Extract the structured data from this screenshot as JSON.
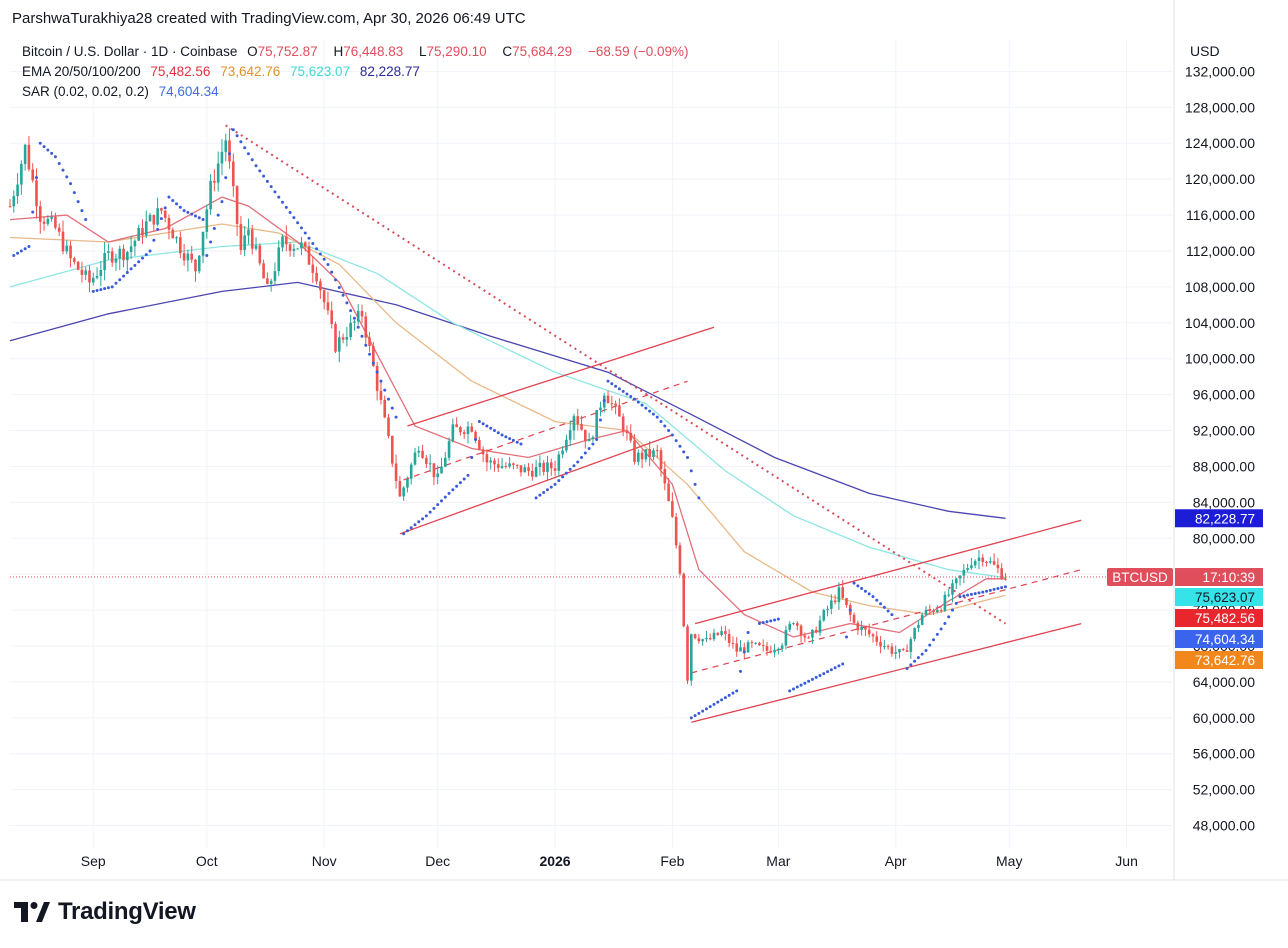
{
  "header": {
    "text": "ParshwaTurakhiya28 created with TradingView.com, Apr 30, 2026 06:49 UTC"
  },
  "legend": {
    "symbol": "Bitcoin / U.S. Dollar · 1D · Coinbase",
    "o_label": "O",
    "o": "75,752.87",
    "h_label": "H",
    "h": "76,448.83",
    "l_label": "L",
    "l": "75,290.10",
    "c_label": "C",
    "c": "75,684.29",
    "change": "−68.59 (−0.09%)",
    "ema_label": "EMA 20/50/100/200",
    "ema20": "75,482.56",
    "ema50": "73,642.76",
    "ema100": "75,623.07",
    "ema200": "82,228.77",
    "sar_label": "SAR (0.02, 0.02, 0.2)",
    "sar": "74,604.34"
  },
  "currency": "USD",
  "brand": "TradingView",
  "chart_data": {
    "type": "candlestick",
    "symbol": "BTCUSD",
    "y_ticks": [
      132000,
      128000,
      124000,
      120000,
      116000,
      112000,
      108000,
      104000,
      100000,
      96000,
      92000,
      88000,
      84000,
      80000,
      76000,
      72000,
      68000,
      64000,
      60000,
      56000,
      52000,
      48000
    ],
    "y_tick_labels": [
      "132,000.00",
      "128,000.00",
      "124,000.00",
      "120,000.00",
      "116,000.00",
      "112,000.00",
      "108,000.00",
      "104,000.00",
      "100,000.00",
      "96,000.00",
      "92,000.00",
      "88,000.00",
      "84,000.00",
      "80,000.00",
      "76,000.00",
      "72,000.00",
      "68,000.00",
      "64,000.00",
      "60,000.00",
      "56,000.00",
      "52,000.00",
      "48,000.00"
    ],
    "ylim": [
      45500,
      135500
    ],
    "x_ticks": [
      {
        "label": "Sep",
        "date": "2025-09-01"
      },
      {
        "label": "Oct",
        "date": "2025-10-01"
      },
      {
        "label": "Nov",
        "date": "2025-11-01"
      },
      {
        "label": "Dec",
        "date": "2025-12-01"
      },
      {
        "label": "2026",
        "date": "2026-01-01",
        "bold": true
      },
      {
        "label": "Feb",
        "date": "2026-02-01"
      },
      {
        "label": "Mar",
        "date": "2026-03-01"
      },
      {
        "label": "Apr",
        "date": "2026-04-01"
      },
      {
        "label": "May",
        "date": "2026-05-01"
      },
      {
        "label": "Jun",
        "date": "2026-06-01"
      }
    ],
    "xlim": [
      "2025-08-10",
      "2026-06-13"
    ],
    "price_path": [
      [
        "2025-08-10",
        117000
      ],
      [
        "2025-08-14",
        123500
      ],
      [
        "2025-08-18",
        116000
      ],
      [
        "2025-08-22",
        114500
      ],
      [
        "2025-08-26",
        111000
      ],
      [
        "2025-08-31",
        108500
      ],
      [
        "2025-09-05",
        111500
      ],
      [
        "2025-09-10",
        112000
      ],
      [
        "2025-09-15",
        115000
      ],
      [
        "2025-09-19",
        116500
      ],
      [
        "2025-09-24",
        112500
      ],
      [
        "2025-09-28",
        110000
      ],
      [
        "2025-10-02",
        119000
      ],
      [
        "2025-10-06",
        124500
      ],
      [
        "2025-10-10",
        112000
      ],
      [
        "2025-10-12",
        114500
      ],
      [
        "2025-10-17",
        107500
      ],
      [
        "2025-10-21",
        113000
      ],
      [
        "2025-10-26",
        112500
      ],
      [
        "2025-10-30",
        109500
      ],
      [
        "2025-11-04",
        101500
      ],
      [
        "2025-11-08",
        103500
      ],
      [
        "2025-11-11",
        105000
      ],
      [
        "2025-11-16",
        95000
      ],
      [
        "2025-11-21",
        84500
      ],
      [
        "2025-11-26",
        90500
      ],
      [
        "2025-12-01",
        86500
      ],
      [
        "2025-12-05",
        92000
      ],
      [
        "2025-12-10",
        92500
      ],
      [
        "2025-12-14",
        88500
      ],
      [
        "2025-12-19",
        88000
      ],
      [
        "2025-12-25",
        87500
      ],
      [
        "2026-01-01",
        88000
      ],
      [
        "2026-01-06",
        94000
      ],
      [
        "2026-01-10",
        90500
      ],
      [
        "2026-01-14",
        96500
      ],
      [
        "2026-01-19",
        92500
      ],
      [
        "2026-01-22",
        89000
      ],
      [
        "2026-01-28",
        89500
      ],
      [
        "2026-02-01",
        82000
      ],
      [
        "2026-02-03",
        76500
      ],
      [
        "2026-02-05",
        64500
      ],
      [
        "2026-02-06",
        69500
      ],
      [
        "2026-02-10",
        68500
      ],
      [
        "2026-02-14",
        69500
      ],
      [
        "2026-02-18",
        67500
      ],
      [
        "2026-02-22",
        68000
      ],
      [
        "2026-02-26",
        67500
      ],
      [
        "2026-03-02",
        68500
      ],
      [
        "2026-03-05",
        71000
      ],
      [
        "2026-03-09",
        68500
      ],
      [
        "2026-03-13",
        71500
      ],
      [
        "2026-03-17",
        74000
      ],
      [
        "2026-03-21",
        70500
      ],
      [
        "2026-03-26",
        69000
      ],
      [
        "2026-03-31",
        67500
      ],
      [
        "2026-04-03",
        67000
      ],
      [
        "2026-04-08",
        71500
      ],
      [
        "2026-04-13",
        72500
      ],
      [
        "2026-04-17",
        75000
      ],
      [
        "2026-04-21",
        77500
      ],
      [
        "2026-04-24",
        78000
      ],
      [
        "2026-04-28",
        76500
      ],
      [
        "2026-04-30",
        75684
      ]
    ],
    "ema20": [
      [
        "2025-08-10",
        115500
      ],
      [
        "2025-08-25",
        116000
      ],
      [
        "2025-09-05",
        113000
      ],
      [
        "2025-09-20",
        114500
      ],
      [
        "2025-10-05",
        118000
      ],
      [
        "2025-10-12",
        117000
      ],
      [
        "2025-10-25",
        113000
      ],
      [
        "2025-11-05",
        108500
      ],
      [
        "2025-11-15",
        100500
      ],
      [
        "2025-11-25",
        92500
      ],
      [
        "2025-12-10",
        90000
      ],
      [
        "2025-12-25",
        89000
      ],
      [
        "2026-01-10",
        91000
      ],
      [
        "2026-01-20",
        92000
      ],
      [
        "2026-02-01",
        86000
      ],
      [
        "2026-02-08",
        76500
      ],
      [
        "2026-02-20",
        71500
      ],
      [
        "2026-03-05",
        69000
      ],
      [
        "2026-03-20",
        70500
      ],
      [
        "2026-04-02",
        69500
      ],
      [
        "2026-04-15",
        73000
      ],
      [
        "2026-04-25",
        75500
      ],
      [
        "2026-04-30",
        75482
      ]
    ],
    "ema50": [
      [
        "2025-08-10",
        113500
      ],
      [
        "2025-09-05",
        113000
      ],
      [
        "2025-10-05",
        115000
      ],
      [
        "2025-10-20",
        114000
      ],
      [
        "2025-11-05",
        110500
      ],
      [
        "2025-11-20",
        104000
      ],
      [
        "2025-12-10",
        97500
      ],
      [
        "2026-01-01",
        93000
      ],
      [
        "2026-01-20",
        92000
      ],
      [
        "2026-02-05",
        86000
      ],
      [
        "2026-02-20",
        78500
      ],
      [
        "2026-03-10",
        74000
      ],
      [
        "2026-03-25",
        72500
      ],
      [
        "2026-04-10",
        71500
      ],
      [
        "2026-04-30",
        73642
      ]
    ],
    "ema100": [
      [
        "2025-08-10",
        108000
      ],
      [
        "2025-09-05",
        111000
      ],
      [
        "2025-10-05",
        112500
      ],
      [
        "2025-10-25",
        113000
      ],
      [
        "2025-11-15",
        109500
      ],
      [
        "2025-12-05",
        104000
      ],
      [
        "2026-01-01",
        98500
      ],
      [
        "2026-01-25",
        95000
      ],
      [
        "2026-02-15",
        87500
      ],
      [
        "2026-03-05",
        82500
      ],
      [
        "2026-03-25",
        79000
      ],
      [
        "2026-04-15",
        76500
      ],
      [
        "2026-04-30",
        75623
      ]
    ],
    "ema200": [
      [
        "2025-08-10",
        102000
      ],
      [
        "2025-09-05",
        105000
      ],
      [
        "2025-10-05",
        107500
      ],
      [
        "2025-10-25",
        108500
      ],
      [
        "2025-11-20",
        106000
      ],
      [
        "2025-12-15",
        102500
      ],
      [
        "2026-01-15",
        98500
      ],
      [
        "2026-02-05",
        94000
      ],
      [
        "2026-02-28",
        89000
      ],
      [
        "2026-03-25",
        85000
      ],
      [
        "2026-04-15",
        83000
      ],
      [
        "2026-04-30",
        82228
      ]
    ],
    "sar_segments": [
      [
        [
          "2025-08-11",
          111500
        ],
        [
          "2025-08-15",
          112500
        ],
        [
          "2025-08-18",
          124000
        ],
        [
          "2025-08-22",
          122500
        ],
        [
          "2025-08-26",
          119500
        ],
        [
          "2025-08-30",
          115500
        ]
      ],
      [
        [
          "2025-09-01",
          107500
        ],
        [
          "2025-09-06",
          108000
        ],
        [
          "2025-09-11",
          110000
        ],
        [
          "2025-09-16",
          112000
        ],
        [
          "2025-09-21",
          118000
        ],
        [
          "2025-09-25",
          116500
        ],
        [
          "2025-09-30",
          115500
        ]
      ],
      [
        [
          "2025-10-01",
          111500
        ],
        [
          "2025-10-05",
          117500
        ],
        [
          "2025-10-08",
          125500
        ],
        [
          "2025-10-14",
          121500
        ],
        [
          "2025-10-20",
          118000
        ],
        [
          "2025-10-27",
          114000
        ],
        [
          "2025-11-02",
          110500
        ],
        [
          "2025-11-09",
          104500
        ],
        [
          "2025-11-16",
          97500
        ],
        [
          "2025-11-20",
          93500
        ]
      ],
      [
        [
          "2025-11-22",
          80500
        ],
        [
          "2025-11-28",
          82500
        ],
        [
          "2025-12-04",
          85000
        ],
        [
          "2025-12-09",
          87000
        ],
        [
          "2025-12-12",
          93000
        ],
        [
          "2025-12-18",
          91500
        ],
        [
          "2025-12-23",
          90500
        ]
      ],
      [
        [
          "2025-12-27",
          84500
        ],
        [
          "2026-01-01",
          86000
        ],
        [
          "2026-01-07",
          88500
        ],
        [
          "2026-01-12",
          91000
        ],
        [
          "2026-01-15",
          97500
        ],
        [
          "2026-01-22",
          95500
        ],
        [
          "2026-01-28",
          93500
        ],
        [
          "2026-02-01",
          91500
        ],
        [
          "2026-02-05",
          89000
        ],
        [
          "2026-02-08",
          84500
        ]
      ],
      [
        [
          "2026-02-06",
          60000
        ],
        [
          "2026-02-12",
          61500
        ],
        [
          "2026-02-18",
          63000
        ],
        [
          "2026-02-21",
          69500
        ]
      ],
      [
        [
          "2026-02-24",
          70500
        ],
        [
          "2026-03-01",
          71000
        ]
      ],
      [
        [
          "2026-03-04",
          63000
        ],
        [
          "2026-03-11",
          64500
        ],
        [
          "2026-03-18",
          66000
        ],
        [
          "2026-03-21",
          75000
        ],
        [
          "2026-03-26",
          73500
        ],
        [
          "2026-03-31",
          71500
        ]
      ],
      [
        [
          "2026-04-04",
          65500
        ],
        [
          "2026-04-09",
          67500
        ],
        [
          "2026-04-14",
          70500
        ],
        [
          "2026-04-18",
          73500
        ],
        [
          "2026-04-24",
          74000
        ],
        [
          "2026-04-30",
          74604
        ]
      ]
    ],
    "channels": [
      {
        "color": "#e0434f",
        "upper": [
          [
            "2025-11-23",
            92500
          ],
          [
            "2026-02-12",
            103500
          ]
        ],
        "lower": [
          [
            "2025-11-21",
            80500
          ],
          [
            "2026-02-01",
            91500
          ]
        ],
        "mid": [
          [
            "2025-11-22",
            86500
          ],
          [
            "2026-02-05",
            97500
          ]
        ]
      },
      {
        "color": "#e0434f",
        "upper": [
          [
            "2026-02-07",
            70500
          ],
          [
            "2026-05-20",
            82000
          ]
        ],
        "lower": [
          [
            "2026-02-06",
            59500
          ],
          [
            "2026-05-20",
            70500
          ]
        ],
        "mid": [
          [
            "2026-02-06",
            65000
          ],
          [
            "2026-05-20",
            76500
          ]
        ]
      }
    ],
    "downtrend": [
      [
        "2025-10-06",
        126000
      ],
      [
        "2026-04-30",
        70500
      ]
    ],
    "current_price": 75684,
    "price_labels": [
      {
        "text": "82,228.77",
        "value": 82228.77,
        "bg": "#1d1dd8",
        "color": "#ffffff"
      },
      {
        "text": "BTCUSD",
        "value": 75684.29,
        "bg": "#e04e5c",
        "color": "#ffffff",
        "side": "left"
      },
      {
        "text": "17:10:39",
        "value": 75684.29,
        "bg": "#e04e5c",
        "color": "#ffffff"
      },
      {
        "text": "75,623.07",
        "value": 75623.07,
        "bg": "#35e3e8",
        "color": "#131722",
        "y_offset": 20
      },
      {
        "text": "75,482.56",
        "value": 75482.56,
        "bg": "#e8262e",
        "color": "#ffffff",
        "y_offset": 41
      },
      {
        "text": "74,604.34",
        "value": 74604.34,
        "bg": "#3a63ee",
        "color": "#ffffff",
        "y_offset": 62
      },
      {
        "text": "73,642.76",
        "value": 73642.76,
        "bg": "#f2871c",
        "color": "#ffffff",
        "y_offset": 83
      }
    ]
  }
}
